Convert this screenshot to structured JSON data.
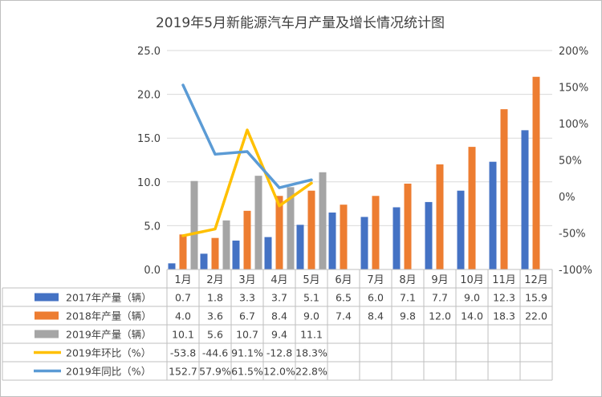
{
  "chart_data": {
    "type": "bar",
    "title": "2019年5月新能源汽车月产量及增长情况统计图",
    "categories": [
      "1月",
      "2月",
      "3月",
      "4月",
      "5月",
      "6月",
      "7月",
      "8月",
      "9月",
      "10月",
      "11月",
      "12月"
    ],
    "y_left": {
      "ylim": [
        0,
        25
      ],
      "ticks": [
        "0.0",
        "5.0",
        "10.0",
        "15.0",
        "20.0",
        "25.0"
      ]
    },
    "y_right": {
      "ylim": [
        -100,
        200
      ],
      "ticks": [
        "-100%",
        "-50%",
        "0%",
        "50%",
        "100%",
        "150%",
        "200%"
      ]
    },
    "grid": true,
    "series": [
      {
        "name": "2017年产量（辆）",
        "type": "bar",
        "axis": "left",
        "color": "#4472C4",
        "values": [
          0.7,
          1.8,
          3.3,
          3.7,
          5.1,
          6.5,
          6.0,
          7.1,
          7.7,
          9.0,
          12.3,
          15.9
        ],
        "labels": [
          "0.7",
          "1.8",
          "3.3",
          "3.7",
          "5.1",
          "6.5",
          "6.0",
          "7.1",
          "7.7",
          "9.0",
          "12.3",
          "15.9"
        ]
      },
      {
        "name": "2018年产量（辆）",
        "type": "bar",
        "axis": "left",
        "color": "#ED7D31",
        "values": [
          4.0,
          3.6,
          6.7,
          8.4,
          9.0,
          7.4,
          8.4,
          9.8,
          12.0,
          14.0,
          18.3,
          22.0
        ],
        "labels": [
          "4.0",
          "3.6",
          "6.7",
          "8.4",
          "9.0",
          "7.4",
          "8.4",
          "9.8",
          "12.0",
          "14.0",
          "18.3",
          "22.0"
        ]
      },
      {
        "name": "2019年产量（辆）",
        "type": "bar",
        "axis": "left",
        "color": "#A5A5A5",
        "values": [
          10.1,
          5.6,
          10.7,
          9.4,
          11.1,
          null,
          null,
          null,
          null,
          null,
          null,
          null
        ],
        "labels": [
          "10.1",
          "5.6",
          "10.7",
          "9.4",
          "11.1",
          "",
          "",
          "",
          "",
          "",
          "",
          ""
        ]
      },
      {
        "name": "2019年环比（%）",
        "type": "line",
        "axis": "right",
        "color": "#FFC000",
        "values": [
          -53.8,
          -44.6,
          91.1,
          -12.8,
          18.3,
          null,
          null,
          null,
          null,
          null,
          null,
          null
        ],
        "labels": [
          "-53.8",
          "-44.6",
          "91.1%",
          "-12.8",
          "18.3%",
          "",
          "",
          "",
          "",
          "",
          "",
          ""
        ]
      },
      {
        "name": "2019年同比（%）",
        "type": "line",
        "axis": "right",
        "color": "#5B9BD5",
        "values": [
          152.7,
          57.9,
          61.5,
          12.0,
          22.8,
          null,
          null,
          null,
          null,
          null,
          null,
          null
        ],
        "labels": [
          "152.7",
          "57.9%",
          "61.5%",
          "12.0%",
          "22.8%",
          "",
          "",
          "",
          "",
          "",
          "",
          ""
        ]
      }
    ]
  }
}
